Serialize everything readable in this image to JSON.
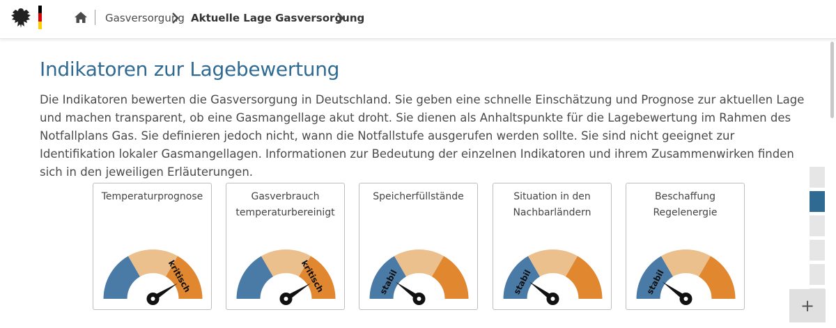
{
  "header": {
    "breadcrumbs": [
      "Gasversorgung",
      "Aktuelle Lage Gasversorgung"
    ],
    "flag_colors": [
      "#000000",
      "#dd0000",
      "#ffce00"
    ]
  },
  "section": {
    "title": "Indikatoren zur Lagebewertung",
    "intro": "Die Indikatoren bewerten die Gasversorgung in Deutschland. Sie geben eine schnelle Einschätzung und Prognose zur aktuellen Lage und machen transparent, ob eine Gasmangellage akut droht. Sie dienen als Anhaltspunkte für die Lagebewertung im Rahmen des Notfallplans Gas. Sie definieren jedoch nicht, wann die Notfallstufe ausgerufen werden sollte. Sie sind nicht geeignet zur Identifikation lokaler Gasmangellagen. Informationen zur Bedeutung der einzelnen Indikatoren und ihrem Zusammenwirken finden sich in den jeweiligen Erläuterungen."
  },
  "gauge_colors": {
    "stable": "#4a7aa6",
    "medium": "#ecc08d",
    "critical": "#e0872f",
    "needle": "#111111"
  },
  "indicators": [
    {
      "title": "Temperaturprognose",
      "status_label": "kritisch",
      "status": "critical",
      "level": 0.82
    },
    {
      "title": "Gasverbrauch\ntemperaturbereinigt",
      "status_label": "kritisch",
      "status": "critical",
      "level": 0.82
    },
    {
      "title": "Speicherfüllstände",
      "status_label": "stabil",
      "status": "stable",
      "level": 0.2
    },
    {
      "title": "Situation in den\nNachbarländern",
      "status_label": "stabil",
      "status": "stable",
      "level": 0.2
    },
    {
      "title": "Beschaffung\nRegelenergie",
      "status_label": "stabil",
      "status": "stable",
      "level": 0.2
    }
  ],
  "side_nav": {
    "count": 6,
    "active_index": 1
  },
  "plus_button": {
    "label": "+"
  }
}
